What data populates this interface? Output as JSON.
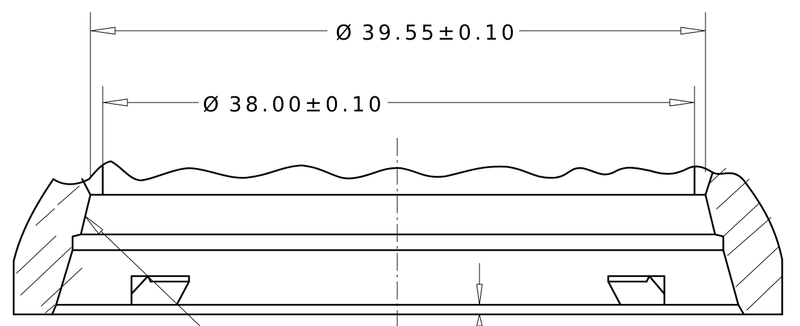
{
  "dimensions": [
    {
      "id": "outer-diameter",
      "symbol": "Ø",
      "value": "39.55±0.10"
    },
    {
      "id": "inner-diameter",
      "symbol": "Ø",
      "value": "38.00±0.10"
    }
  ]
}
